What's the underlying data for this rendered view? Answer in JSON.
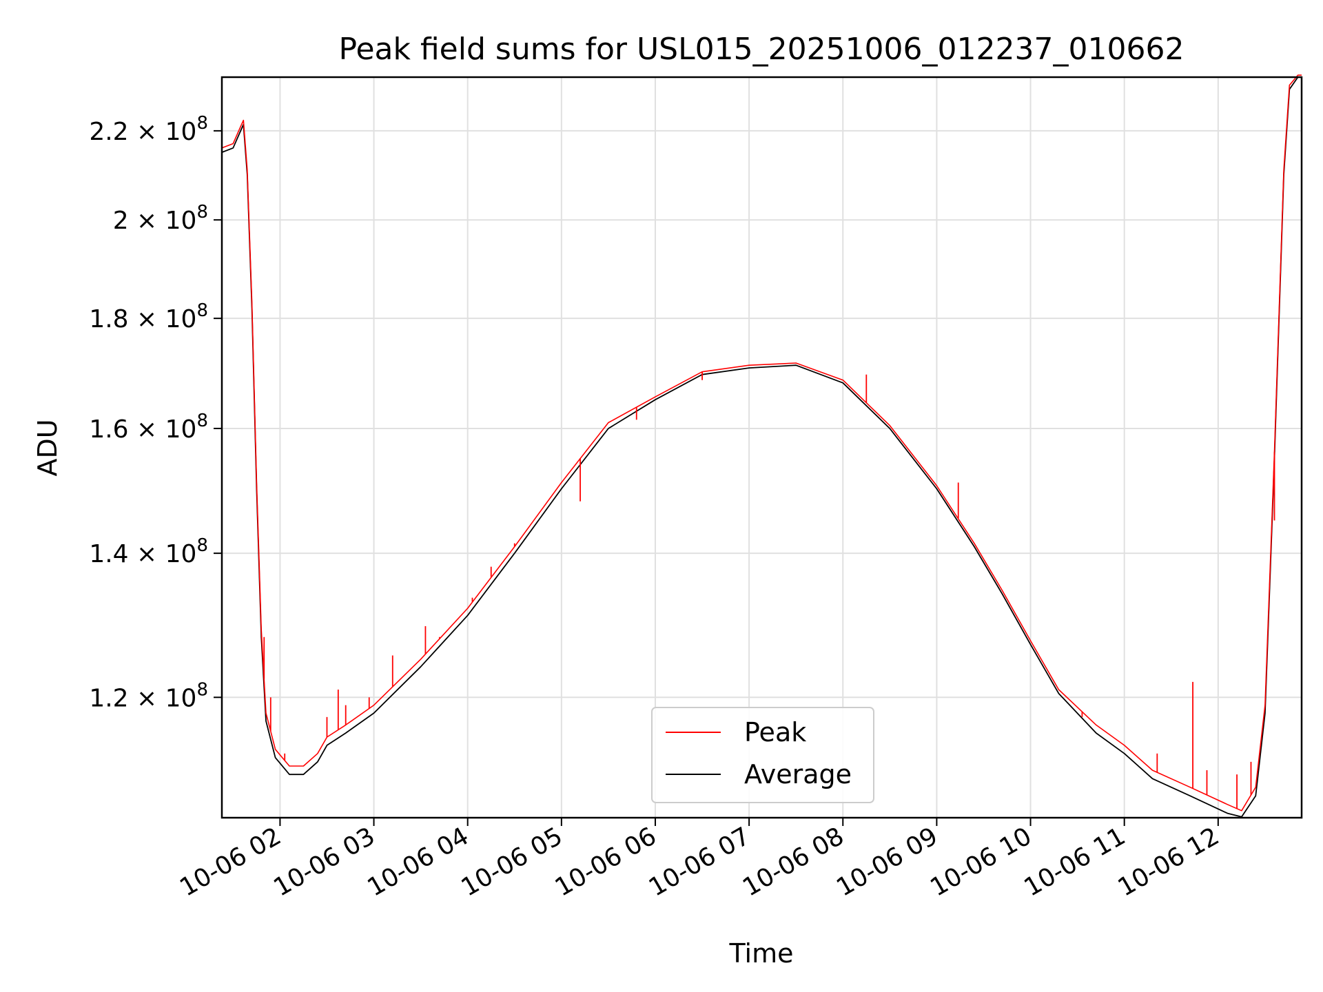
{
  "chart_data": {
    "type": "line",
    "title": "Peak field sums for USL015_20251006_012237_010662",
    "xlabel": "Time",
    "ylabel": "ADU",
    "yscale": "log",
    "grid": true,
    "legend_position": "lower center",
    "xlim": [
      1.38,
      12.89
    ],
    "ylim": [
      105500000.0,
      233000000.0
    ],
    "x_ticks": [
      {
        "value": 2,
        "label": "10-06 02"
      },
      {
        "value": 3,
        "label": "10-06 03"
      },
      {
        "value": 4,
        "label": "10-06 04"
      },
      {
        "value": 5,
        "label": "10-06 05"
      },
      {
        "value": 6,
        "label": "10-06 06"
      },
      {
        "value": 7,
        "label": "10-06 07"
      },
      {
        "value": 8,
        "label": "10-06 08"
      },
      {
        "value": 9,
        "label": "10-06 09"
      },
      {
        "value": 10,
        "label": "10-06 10"
      },
      {
        "value": 11,
        "label": "10-06 11"
      },
      {
        "value": 12,
        "label": "10-06 12"
      }
    ],
    "y_ticks": [
      {
        "value": 120000000.0,
        "mantissa": "1.2",
        "exponent": "8"
      },
      {
        "value": 140000000.0,
        "mantissa": "1.4",
        "exponent": "8"
      },
      {
        "value": 160000000.0,
        "mantissa": "1.6",
        "exponent": "8"
      },
      {
        "value": 180000000.0,
        "mantissa": "1.8",
        "exponent": "8"
      },
      {
        "value": 200000000.0,
        "mantissa": "2",
        "exponent": "8"
      },
      {
        "value": 220000000.0,
        "mantissa": "2.2",
        "exponent": "8"
      }
    ],
    "times_symbol": "×",
    "power_base": "10",
    "series": [
      {
        "name": "Average",
        "color": "#000000",
        "points": [
          [
            1.38,
            215000000.0
          ],
          [
            1.5,
            216000000.0
          ],
          [
            1.58,
            220000000.0
          ],
          [
            1.61,
            221500000.0
          ],
          [
            1.65,
            210000000.0
          ],
          [
            1.7,
            182000000.0
          ],
          [
            1.75,
            150000000.0
          ],
          [
            1.8,
            128000000.0
          ],
          [
            1.85,
            117000000.0
          ],
          [
            1.95,
            112500000.0
          ],
          [
            2.1,
            110500000.0
          ],
          [
            2.25,
            110500000.0
          ],
          [
            2.4,
            112000000.0
          ],
          [
            2.5,
            114000000.0
          ],
          [
            2.7,
            115500000.0
          ],
          [
            3.0,
            118000000.0
          ],
          [
            3.5,
            124000000.0
          ],
          [
            4.0,
            131000000.0
          ],
          [
            4.5,
            140000000.0
          ],
          [
            5.0,
            150000000.0
          ],
          [
            5.5,
            160000000.0
          ],
          [
            6.0,
            165000000.0
          ],
          [
            6.5,
            169500000.0
          ],
          [
            7.0,
            170700000.0
          ],
          [
            7.5,
            171200000.0
          ],
          [
            8.0,
            168000000.0
          ],
          [
            8.5,
            160000000.0
          ],
          [
            9.0,
            150000000.0
          ],
          [
            9.4,
            141000000.0
          ],
          [
            9.7,
            134000000.0
          ],
          [
            10.0,
            127000000.0
          ],
          [
            10.3,
            120500000.0
          ],
          [
            10.7,
            115500000.0
          ],
          [
            11.0,
            113000000.0
          ],
          [
            11.3,
            110000000.0
          ],
          [
            11.7,
            108000000.0
          ],
          [
            12.1,
            106000000.0
          ],
          [
            12.25,
            105600000.0
          ],
          [
            12.4,
            108000000.0
          ],
          [
            12.5,
            118000000.0
          ],
          [
            12.6,
            155000000.0
          ],
          [
            12.7,
            210000000.0
          ],
          [
            12.76,
            230000000.0
          ],
          [
            12.85,
            233000000.0
          ],
          [
            12.89,
            233000000.0
          ]
        ]
      },
      {
        "name": "Peak",
        "color": "#ff0000",
        "points": [
          [
            1.38,
            216000000.0
          ],
          [
            1.5,
            217000000.0
          ],
          [
            1.58,
            221000000.0
          ],
          [
            1.61,
            222500000.0
          ],
          [
            1.65,
            211000000.0
          ],
          [
            1.7,
            183000000.0
          ],
          [
            1.75,
            151000000.0
          ],
          [
            1.8,
            129000000.0
          ],
          [
            1.85,
            118000000.0
          ],
          [
            1.95,
            113500000.0
          ],
          [
            2.1,
            111500000.0
          ],
          [
            2.25,
            111500000.0
          ],
          [
            2.4,
            113000000.0
          ],
          [
            2.5,
            115000000.0
          ],
          [
            2.7,
            116500000.0
          ],
          [
            3.0,
            119000000.0
          ],
          [
            3.5,
            125000000.0
          ],
          [
            4.0,
            132000000.0
          ],
          [
            4.5,
            141000000.0
          ],
          [
            5.0,
            151000000.0
          ],
          [
            5.5,
            161000000.0
          ],
          [
            6.0,
            165500000.0
          ],
          [
            6.5,
            170000000.0
          ],
          [
            7.0,
            171200000.0
          ],
          [
            7.5,
            171600000.0
          ],
          [
            8.0,
            168500000.0
          ],
          [
            8.5,
            160500000.0
          ],
          [
            9.0,
            150500000.0
          ],
          [
            9.4,
            141500000.0
          ],
          [
            9.7,
            134500000.0
          ],
          [
            10.0,
            127500000.0
          ],
          [
            10.3,
            121000000.0
          ],
          [
            10.7,
            116500000.0
          ],
          [
            11.0,
            114000000.0
          ],
          [
            11.3,
            111000000.0
          ],
          [
            11.7,
            109000000.0
          ],
          [
            12.1,
            107000000.0
          ],
          [
            12.25,
            106300000.0
          ],
          [
            12.4,
            109000000.0
          ],
          [
            12.5,
            119000000.0
          ],
          [
            12.6,
            156000000.0
          ],
          [
            12.7,
            211000000.0
          ],
          [
            12.76,
            231000000.0
          ],
          [
            12.85,
            233500000.0
          ],
          [
            12.89,
            233500000.0
          ]
        ],
        "spikes": [
          [
            1.83,
            128000000.0
          ],
          [
            1.9,
            120000000.0
          ],
          [
            2.05,
            113000000.0
          ],
          [
            2.5,
            117500000.0
          ],
          [
            2.62,
            121000000.0
          ],
          [
            2.7,
            119000000.0
          ],
          [
            2.95,
            120000000.0
          ],
          [
            3.2,
            125500000.0
          ],
          [
            3.55,
            129500000.0
          ],
          [
            3.7,
            128000000.0
          ],
          [
            4.05,
            133500000.0
          ],
          [
            4.25,
            138000000.0
          ],
          [
            4.5,
            141500000.0
          ],
          [
            5.2,
            148000000.0
          ],
          [
            5.8,
            161500000.0
          ],
          [
            6.5,
            168500000.0
          ],
          [
            8.25,
            169500000.0
          ],
          [
            9.23,
            151000000.0
          ],
          [
            10.55,
            117500000.0
          ],
          [
            11.35,
            113000000.0
          ],
          [
            11.73,
            122000000.0
          ],
          [
            11.88,
            111000000.0
          ],
          [
            12.2,
            110500000.0
          ],
          [
            12.35,
            112000000.0
          ],
          [
            12.6,
            145000000.0
          ]
        ]
      }
    ],
    "legend": [
      {
        "label": "Peak",
        "color": "#ff0000"
      },
      {
        "label": "Average",
        "color": "#000000"
      }
    ]
  }
}
